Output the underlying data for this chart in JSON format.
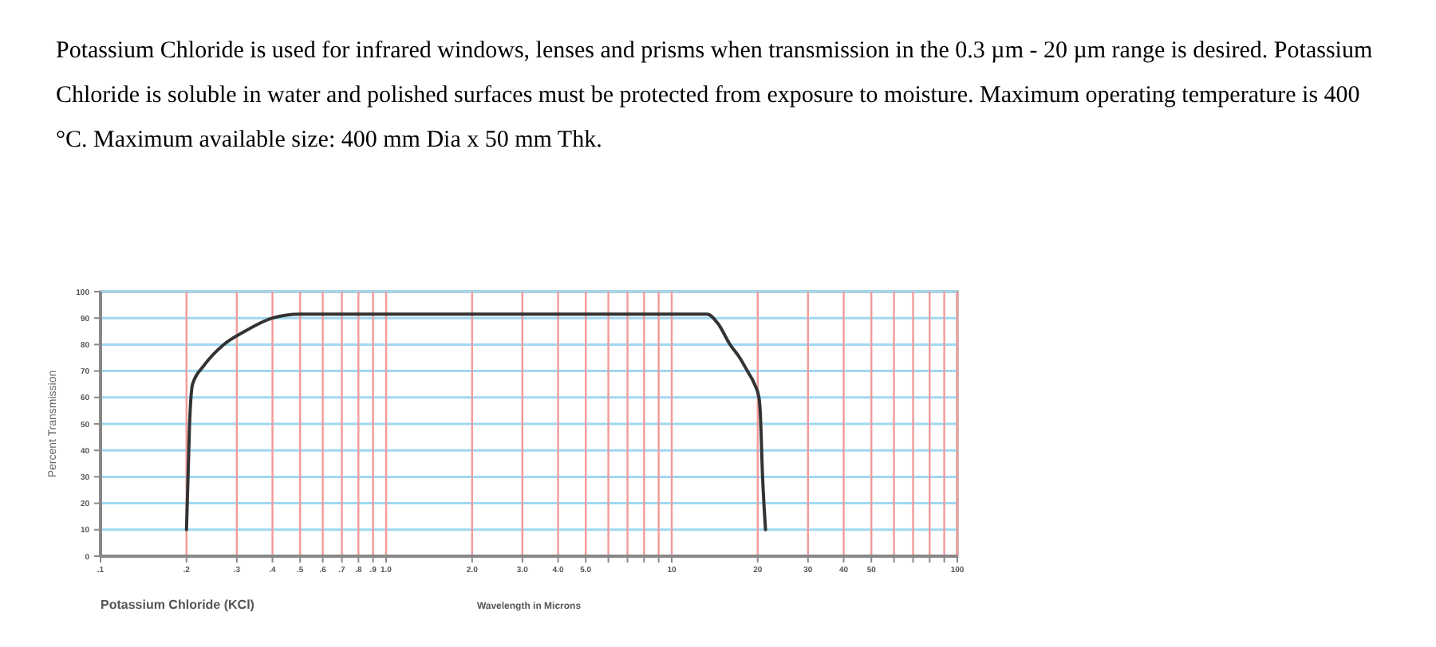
{
  "chart_data": {
    "type": "line",
    "title": "Potassium Chloride (KCl)",
    "xlabel": "Wavelength in Microns",
    "ylabel": "Percent Transmission",
    "annotations": [
      "Potassium Chloride is used for infrared windows, lenses and prisms when transmission in the 0.3 µm - 20 µm range is desired. Potassium Chloride is soluble in water and polished surfaces must be protected from exposure to moisture. Maximum operating temperature is 400 °C. Maximum available size: 400 mm Dia x 50 mm Thk."
    ],
    "log": "x",
    "xlim": [
      0.1,
      100
    ],
    "ylim": [
      0,
      100
    ],
    "xticks": [
      {
        "value": 0.1,
        "label": ".1"
      },
      {
        "value": 0.2,
        "label": ".2"
      },
      {
        "value": 0.3,
        "label": ".3"
      },
      {
        "value": 0.4,
        "label": ".4"
      },
      {
        "value": 0.5,
        "label": ".5"
      },
      {
        "value": 0.6,
        "label": ".6"
      },
      {
        "value": 0.7,
        "label": ".7"
      },
      {
        "value": 0.8,
        "label": ".8"
      },
      {
        "value": 0.9,
        "label": ".9"
      },
      {
        "value": 1,
        "label": "1.0"
      },
      {
        "value": 2,
        "label": "2.0"
      },
      {
        "value": 3,
        "label": "3.0"
      },
      {
        "value": 4,
        "label": "4.0"
      },
      {
        "value": 5,
        "label": "5.0"
      },
      {
        "value": 6,
        "label": null
      },
      {
        "value": 7,
        "label": null
      },
      {
        "value": 8,
        "label": null
      },
      {
        "value": 9,
        "label": null
      },
      10,
      20,
      30,
      40,
      50,
      {
        "value": 60,
        "label": null
      },
      {
        "value": 70,
        "label": null
      },
      {
        "value": 80,
        "label": null
      },
      {
        "value": 90,
        "label": null
      },
      100
    ],
    "yticks": [
      0,
      10,
      20,
      30,
      40,
      50,
      60,
      70,
      80,
      90,
      100
    ],
    "grid": true,
    "marker": "none",
    "series": [
      {
        "color": "#333333",
        "x": [
          0.2,
          0.205,
          0.21,
          0.23,
          0.27,
          0.32,
          0.4,
          0.5,
          1,
          5,
          10,
          13.3,
          14.5,
          16,
          17.3,
          18.4,
          19.5,
          20.2,
          20.4,
          20.8,
          21.3
        ],
        "values": [
          10,
          50,
          65,
          72,
          80,
          85,
          90,
          91.5,
          91.5,
          91.5,
          91.5,
          91.5,
          88,
          80,
          75,
          70,
          65,
          60,
          55,
          30,
          10
        ]
      }
    ]
  }
}
